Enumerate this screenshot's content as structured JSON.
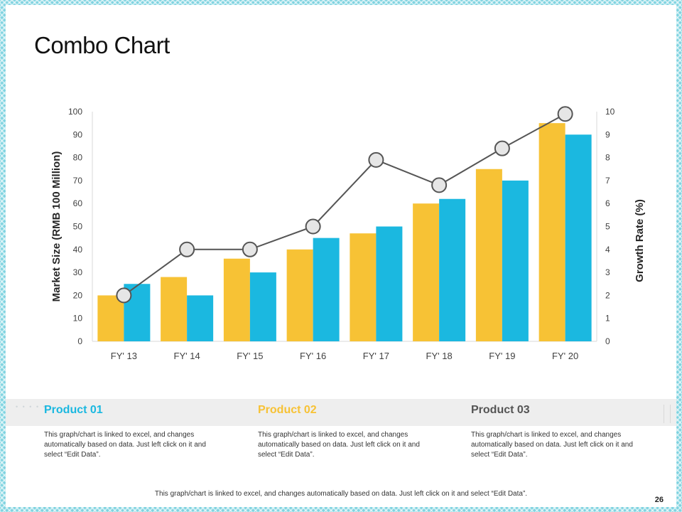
{
  "slide": {
    "title": "Combo Chart",
    "page_number": "26",
    "footer_text": "This graph/chart is linked to excel, and changes automatically  based on data. Just left click on it and select “Edit Data”."
  },
  "colors": {
    "product01": "#1bb8e0",
    "product02": "#f7c235",
    "product03": "#555555",
    "line": "#555555",
    "marker_fill": "#e6e6e6"
  },
  "products": [
    {
      "name": "Product 01",
      "color": "#1bb8e0",
      "description": "This graph/chart is linked to excel, and changes automatically  based on data.  Just left click  on it and select “Edit Data”."
    },
    {
      "name": "Product 02",
      "color": "#f7c235",
      "description": "This graph/chart is linked to excel, and changes automatically  based on data.  Just left click  on it and select “Edit Data”."
    },
    {
      "name": "Product 03",
      "color": "#555555",
      "description": "This graph/chart is linked to excel, and changes automatically  based on data.  Just left click  on it and select “Edit Data”."
    }
  ],
  "chart_data": {
    "type": "bar",
    "categories": [
      "FY' 13",
      "FY' 14",
      "FY' 15",
      "FY' 16",
      "FY' 17",
      "FY' 18",
      "FY' 19",
      "FY' 20"
    ],
    "series": [
      {
        "color": "#f7c235",
        "values": [
          20,
          28,
          36,
          40,
          47,
          60,
          75,
          95
        ]
      },
      {
        "color": "#1bb8e0",
        "values": [
          25,
          20,
          30,
          45,
          50,
          62,
          70,
          90
        ]
      }
    ],
    "line_series": {
      "type": "line",
      "axis": "right",
      "color": "#555555",
      "values": [
        2,
        4,
        4,
        5,
        7.9,
        6.8,
        8.4,
        9.9
      ]
    },
    "ylabel": "Market Size (RMB 100 Million)",
    "ylabel_right": "Growth Rate (%)",
    "ylim": [
      0,
      100
    ],
    "yticks": [
      0,
      10,
      20,
      30,
      40,
      50,
      60,
      70,
      80,
      90,
      100
    ],
    "ylim_right": [
      0,
      10
    ],
    "yticks_right": [
      0,
      1,
      2,
      3,
      4,
      5,
      6,
      7,
      8,
      9,
      10
    ],
    "grid": false,
    "legend": "none"
  }
}
